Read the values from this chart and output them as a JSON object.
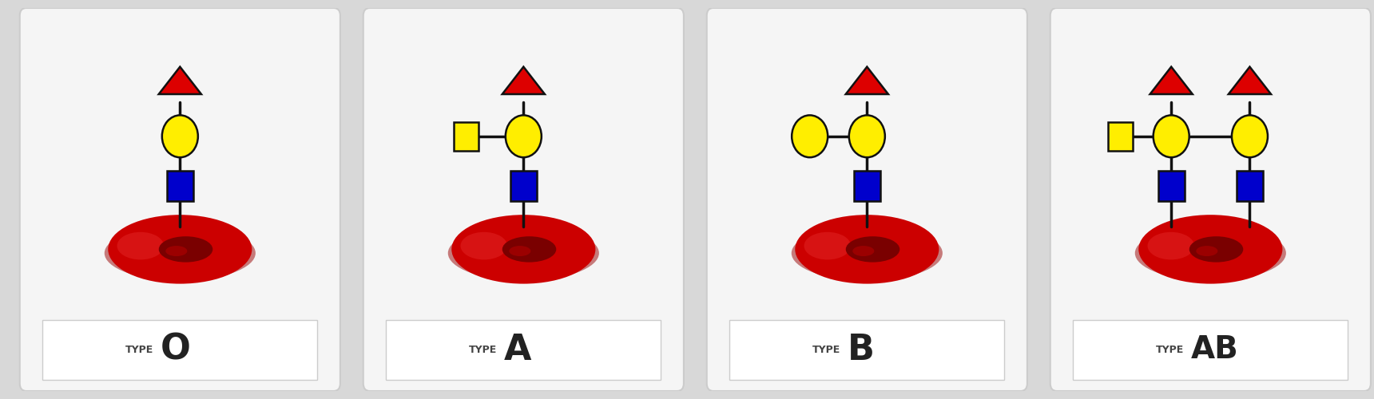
{
  "background_color": "#d8d8d8",
  "panel_bg": "#f0f0f0",
  "label_box_color": "#ffffff",
  "red_cell_color": "#cc0000",
  "red_cell_dark": "#7a0000",
  "triangle_color": "#dd0000",
  "circle_color": "#ffee00",
  "square_color": "#0000cc",
  "line_color": "#111111",
  "label_small_text": "TYPE",
  "panels": [
    {
      "label_big": "O",
      "type": "O"
    },
    {
      "label_big": "A",
      "type": "A"
    },
    {
      "label_big": "B",
      "type": "B"
    },
    {
      "label_big": "AB",
      "type": "AB"
    }
  ]
}
